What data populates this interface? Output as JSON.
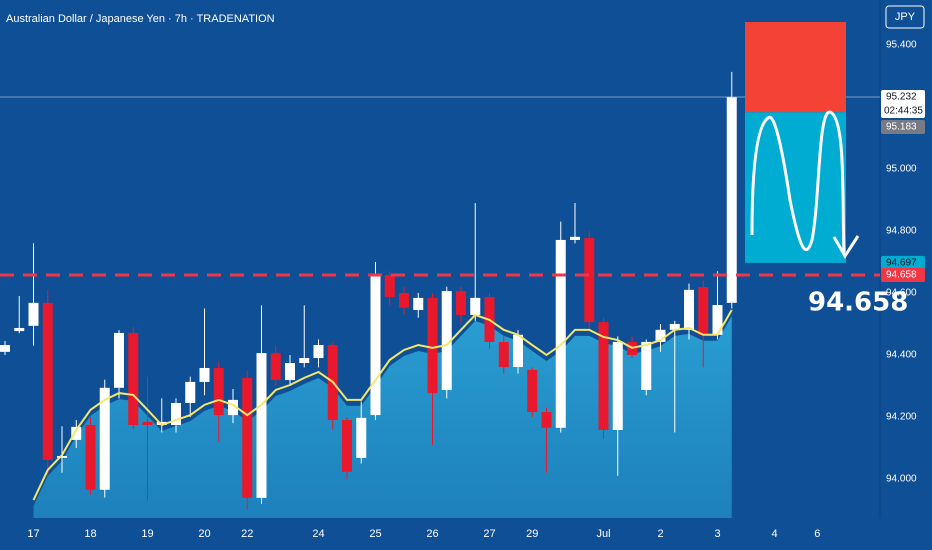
{
  "chart_data": {
    "type": "candlestick",
    "title": "Australian Dollar / Japanese Yen · 7h · TRADENATION",
    "currency": "JPY",
    "categories": [
      null,
      null,
      "17",
      null,
      null,
      null,
      "18",
      null,
      null,
      null,
      "19",
      null,
      null,
      null,
      "20",
      null,
      null,
      "22",
      null,
      null,
      null,
      null,
      "24",
      null,
      null,
      null,
      "25",
      null,
      null,
      null,
      "26",
      null,
      null,
      null,
      "27",
      null,
      null,
      "29",
      null,
      null,
      null,
      null,
      "Jul",
      null,
      null,
      null,
      "2",
      null,
      null,
      null,
      "3",
      null,
      null,
      null,
      "4",
      null,
      null,
      "6"
    ],
    "open": [
      94.41,
      94.477,
      94.494,
      94.568,
      94.068,
      94.126,
      94.174,
      93.965,
      94.294,
      94.471,
      94.184,
      94.174,
      94.174,
      94.245,
      94.313,
      94.358,
      94.206,
      94.326,
      93.939,
      94.406,
      94.319,
      94.374,
      94.39,
      94.432,
      94.19,
      94.068,
      94.206,
      94.658,
      94.6,
      94.545,
      94.584,
      94.287,
      94.606,
      94.529,
      94.587,
      94.442,
      94.361,
      94.352,
      94.216,
      94.165,
      94.771,
      94.777,
      94.506,
      94.158,
      94.442,
      94.287,
      94.442,
      94.481,
      94.481,
      94.619,
      94.465,
      94.568,
      null,
      null,
      null,
      null,
      null,
      null
    ],
    "high": [
      94.445,
      94.59,
      94.76,
      94.61,
      94.17,
      94.19,
      94.2,
      94.32,
      94.48,
      94.49,
      94.33,
      94.26,
      94.26,
      94.33,
      94.55,
      94.38,
      94.29,
      94.35,
      94.56,
      94.43,
      94.4,
      94.56,
      94.45,
      94.44,
      94.2,
      94.25,
      94.7,
      94.67,
      94.62,
      94.6,
      94.6,
      94.62,
      94.62,
      94.89,
      94.6,
      94.46,
      94.48,
      94.36,
      94.23,
      94.83,
      94.89,
      94.8,
      94.52,
      94.46,
      94.46,
      94.45,
      94.5,
      94.51,
      94.63,
      94.64,
      94.67,
      95.313,
      null,
      null,
      null,
      null,
      null,
      null
    ],
    "low": [
      94.4,
      94.47,
      94.43,
      94.01,
      94.02,
      94.1,
      93.95,
      93.94,
      94.26,
      94.16,
      93.93,
      94.15,
      94.15,
      94.2,
      94.27,
      94.12,
      94.18,
      93.9,
      93.92,
      94.3,
      94.3,
      94.36,
      94.36,
      94.16,
      94.0,
      94.05,
      94.19,
      94.56,
      94.53,
      94.52,
      94.11,
      94.26,
      94.5,
      94.51,
      94.42,
      94.34,
      94.34,
      94.2,
      94.02,
      94.15,
      94.76,
      94.48,
      94.13,
      94.01,
      94.39,
      94.27,
      94.41,
      94.15,
      94.45,
      94.36,
      94.45,
      94.55,
      null,
      null,
      null,
      null,
      null,
      null
    ],
    "close": [
      94.432,
      94.487,
      94.568,
      94.061,
      94.074,
      94.168,
      93.965,
      94.294,
      94.471,
      94.174,
      94.174,
      94.184,
      94.245,
      94.313,
      94.358,
      94.206,
      94.255,
      93.939,
      94.406,
      94.319,
      94.374,
      94.39,
      94.432,
      94.19,
      94.023,
      94.197,
      94.658,
      94.587,
      94.552,
      94.584,
      94.277,
      94.606,
      94.529,
      94.584,
      94.442,
      94.361,
      94.465,
      94.216,
      94.165,
      94.771,
      94.781,
      94.506,
      94.158,
      94.442,
      94.4,
      94.442,
      94.481,
      94.5,
      94.61,
      94.465,
      94.561,
      95.232,
      null,
      null,
      null,
      null,
      null,
      null
    ],
    "ma": [
      null,
      null,
      93.932,
      94.029,
      94.077,
      94.158,
      94.223,
      94.255,
      94.277,
      94.271,
      94.223,
      94.174,
      94.19,
      94.206,
      94.239,
      94.255,
      94.239,
      94.206,
      94.239,
      94.287,
      94.303,
      94.326,
      94.345,
      94.313,
      94.255,
      94.255,
      94.319,
      94.384,
      94.416,
      94.432,
      94.423,
      94.432,
      94.481,
      94.529,
      94.513,
      94.481,
      94.465,
      94.432,
      94.4,
      94.432,
      94.481,
      94.481,
      94.458,
      94.448,
      94.423,
      94.432,
      94.448,
      94.481,
      94.487,
      94.465,
      94.465,
      94.545,
      null,
      null,
      null,
      null,
      null,
      null
    ],
    "up_color": "#ffffff",
    "down_color": "#e8192c",
    "ma_color": "#f4e76a",
    "area_color": "#2aa2d4",
    "ylim": [
      93.874,
      95.545
    ],
    "yticks": [
      {
        "value": 94,
        "label": "94.000"
      },
      {
        "value": 94.2,
        "label": "94.200"
      },
      {
        "value": 94.4,
        "label": "94.400"
      },
      {
        "value": 94.6,
        "label": "94.600"
      },
      {
        "value": 94.8,
        "label": "94.800"
      },
      {
        "value": 95,
        "label": "95.000"
      },
      {
        "value": 95.2,
        "label": "95.200"
      },
      {
        "value": 95.4,
        "label": "95.400"
      }
    ],
    "current_price": {
      "value": 95.232,
      "label": "95.232"
    },
    "countdown": "02:44:35",
    "position": {
      "stop": 95.474,
      "entry": {
        "value": 95.183,
        "label": "95.183"
      },
      "target": {
        "value": 94.697,
        "label": "94.697"
      }
    },
    "level": {
      "value": 94.658,
      "label": "94.658"
    }
  }
}
